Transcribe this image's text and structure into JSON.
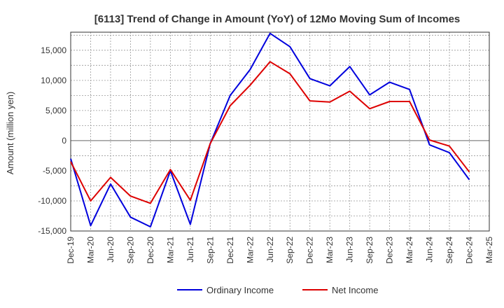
{
  "chart_data": {
    "type": "line",
    "title": "[6113]  Trend of Change in Amount (YoY) of 12Mo Moving Sum of Incomes",
    "ylabel": "Amount (million yen)",
    "xlabel": "",
    "ylim": [
      -15000,
      18000
    ],
    "yticks": [
      15000,
      10000,
      5000,
      0,
      -5000,
      -10000,
      -15000
    ],
    "ytick_labels": [
      "15,000",
      "10,000",
      "5,000",
      "0",
      "-5,000",
      "-10,000",
      "-15,000"
    ],
    "categories": [
      "Dec-19",
      "Mar-20",
      "Jun-20",
      "Sep-20",
      "Dec-20",
      "Mar-21",
      "Jun-21",
      "Sep-21",
      "Dec-21",
      "Mar-22",
      "Jun-22",
      "Sep-22",
      "Dec-22",
      "Mar-23",
      "Jun-23",
      "Sep-23",
      "Dec-23",
      "Mar-24",
      "Jun-24",
      "Sep-24",
      "Dec-24",
      "Mar-25"
    ],
    "grid": true,
    "legend": "bottom",
    "series": [
      {
        "name": "Ordinary Income",
        "color": "#0000dd",
        "values": [
          -3000,
          -14100,
          -7200,
          -12700,
          -14300,
          -5000,
          -13900,
          -500,
          7500,
          11800,
          17800,
          15600,
          10300,
          9100,
          12300,
          7600,
          9700,
          8500,
          -700,
          -2000,
          -6500,
          null
        ]
      },
      {
        "name": "Net Income",
        "color": "#dd0000",
        "values": [
          -3500,
          -10000,
          -6100,
          -9200,
          -10400,
          -4800,
          -9900,
          -500,
          5800,
          9200,
          13100,
          11100,
          6600,
          6400,
          8200,
          5300,
          6500,
          6500,
          100,
          -900,
          -5200,
          null
        ]
      }
    ]
  }
}
